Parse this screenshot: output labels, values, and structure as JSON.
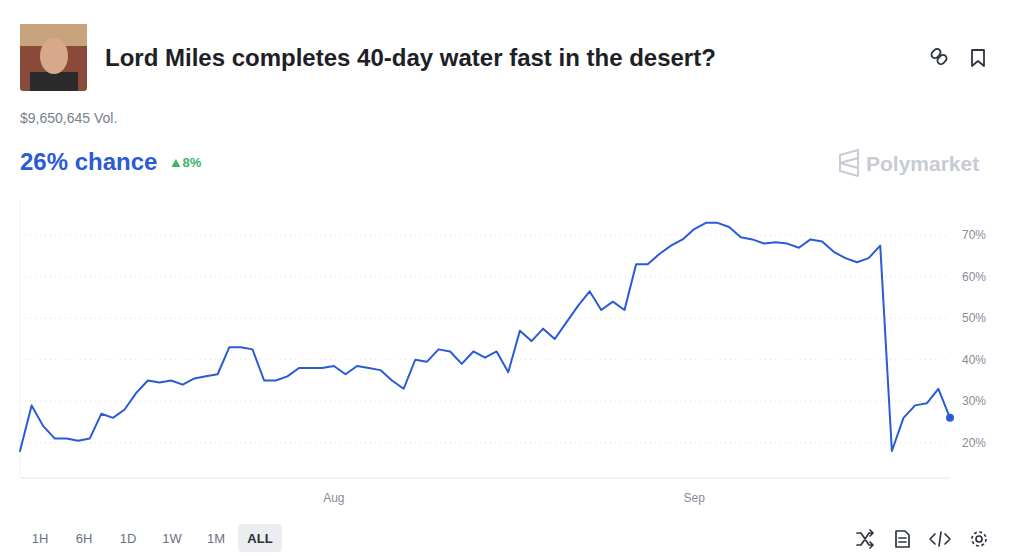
{
  "header": {
    "volume": "$9,650,645 Vol.",
    "chance": "26% chance",
    "change": "8%",
    "brand": "Polymarket"
  },
  "range_buttons": [
    "1H",
    "6H",
    "1D",
    "1W",
    "1M",
    "ALL"
  ],
  "active_range": "ALL",
  "chart_data": {
    "type": "line",
    "title": "Lord Miles completes 40-day water fast in the desert?",
    "categories": [
      null,
      null,
      null,
      null,
      null,
      null,
      null,
      null,
      null,
      null,
      null,
      null,
      null,
      null,
      null,
      null,
      null,
      null,
      null,
      null,
      null,
      null,
      null,
      null,
      null,
      null,
      null,
      "Aug",
      null,
      null,
      null,
      null,
      null,
      null,
      null,
      null,
      null,
      null,
      null,
      null,
      null,
      null,
      null,
      null,
      null,
      null,
      null,
      null,
      null,
      null,
      null,
      null,
      null,
      null,
      null,
      null,
      null,
      null,
      "Sep",
      null,
      null,
      null,
      null,
      null,
      null,
      null,
      null,
      null,
      null,
      null,
      null,
      null,
      null,
      null,
      null,
      null,
      null,
      null,
      null,
      null,
      null
    ],
    "values": [
      18,
      29,
      24,
      21,
      21,
      20.5,
      21,
      27,
      26,
      28,
      32,
      35,
      34.5,
      35,
      34,
      35.5,
      36,
      36.5,
      43,
      43,
      42.5,
      35,
      35,
      36,
      38,
      38,
      38,
      38.5,
      36.5,
      38.5,
      38,
      37.5,
      35,
      33,
      40,
      39.5,
      42.5,
      42,
      39,
      42,
      40.5,
      42,
      37,
      47,
      44.5,
      47.5,
      45,
      49,
      53,
      56.5,
      52,
      54,
      52,
      63,
      63,
      65.5,
      67.5,
      69,
      71.5,
      73,
      73,
      72,
      69.5,
      69,
      68,
      68.3,
      68,
      67,
      69,
      68.5,
      66,
      64.5,
      63.5,
      64.5,
      67.5,
      18,
      26,
      29,
      29.5,
      33,
      26
    ],
    "color": "#2a5bd7",
    "ylim": [
      11.5,
      78.5
    ],
    "yticks": [
      {
        "value": 20,
        "label": "20%"
      },
      {
        "value": 30,
        "label": "30%"
      },
      {
        "value": 40,
        "label": "40%"
      },
      {
        "value": 50,
        "label": "50%"
      },
      {
        "value": 60,
        "label": "60%"
      },
      {
        "value": 70,
        "label": "70%"
      }
    ],
    "grid": true
  }
}
